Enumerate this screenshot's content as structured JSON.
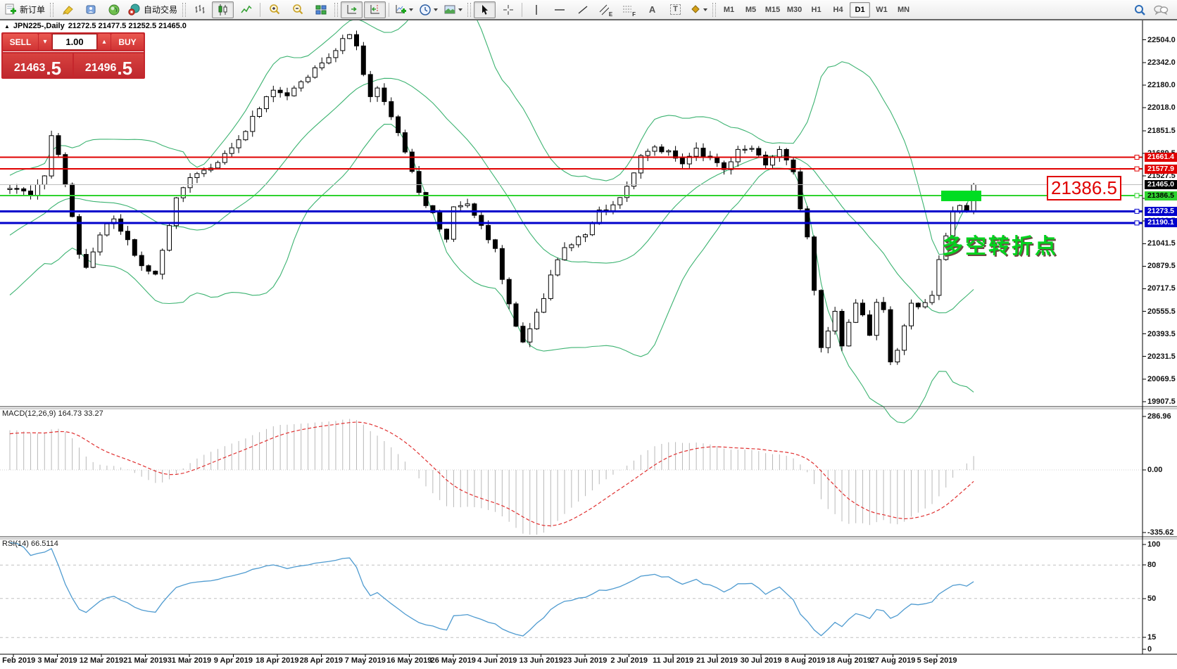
{
  "toolbar": {
    "new_order": "新订单",
    "auto_trading": "自动交易",
    "timeframes": [
      {
        "label": "M1",
        "active": false
      },
      {
        "label": "M5",
        "active": false
      },
      {
        "label": "M15",
        "active": false
      },
      {
        "label": "M30",
        "active": false
      },
      {
        "label": "H1",
        "active": false
      },
      {
        "label": "H4",
        "active": false
      },
      {
        "label": "D1",
        "active": true
      },
      {
        "label": "W1",
        "active": false
      },
      {
        "label": "MN",
        "active": false
      }
    ],
    "tool_glyphs": {
      "text": "A",
      "label": "T",
      "channel": "E",
      "fibo": "F"
    }
  },
  "chart": {
    "collapse_arrow": "▲",
    "symbol_period": "JPN225-,Daily",
    "ohlc_text": "21272.5 21477.5 21252.5 21465.0",
    "trade_panel": {
      "sell_label": "SELL",
      "buy_label": "BUY",
      "volume": "1.00",
      "down_arrow": "▾",
      "up_arrow": "▴",
      "sell_price_main": "21463",
      "sell_price_frac": ".5",
      "buy_price_main": "21496",
      "buy_price_frac": ".5"
    },
    "big_price_label": "21386.5",
    "annotation": "多空转折点",
    "price_tags": [
      {
        "label": "21661.4",
        "line": "#e00000",
        "width": 2,
        "bg": "#e00000",
        "fg": "#ffffff",
        "marker": true
      },
      {
        "label": "21577.9",
        "line": "#e00000",
        "width": 2,
        "bg": "#e00000",
        "fg": "#ffffff",
        "marker": true
      },
      {
        "label": "21465.0",
        "line": "#bcbcbc",
        "width": 1,
        "bg": "#000000",
        "fg": "#ffffff",
        "marker": false
      },
      {
        "label": "21386.5",
        "line": "#2fd32f",
        "width": 2,
        "bg": "#2fd32f",
        "fg": "#000000",
        "marker": true
      },
      {
        "label": "21273.5",
        "line": "#0000cc",
        "width": 3,
        "bg": "#0000cc",
        "fg": "#ffffff",
        "marker": true
      },
      {
        "label": "21190.1",
        "line": "#0000cc",
        "width": 3,
        "bg": "#0000cc",
        "fg": "#ffffff",
        "marker": true
      }
    ],
    "y_axis_labels": [
      "22504.0",
      "22342.0",
      "22180.0",
      "22018.0",
      "21851.5",
      "21689.5",
      "21527.5",
      "21365.5",
      "21203.5",
      "21041.5",
      "20879.5",
      "20717.5",
      "20555.5",
      "20393.5",
      "20231.5",
      "20069.5",
      "19907.5"
    ]
  },
  "macd": {
    "label": "MACD(12,26,9) 164.73 33.27",
    "axis_labels": [
      "286.96",
      "0.00",
      "-335.62"
    ]
  },
  "rsi": {
    "label": "RSI(14) 66.5114",
    "axis_labels": [
      "100",
      "80",
      "50",
      "15",
      "0"
    ]
  },
  "date_axis": [
    "21 Feb 2019",
    "3 Mar 2019",
    "12 Mar 2019",
    "21 Mar 2019",
    "31 Mar 2019",
    "9 Apr 2019",
    "18 Apr 2019",
    "28 Apr 2019",
    "7 May 2019",
    "16 May 2019",
    "26 May 2019",
    "4 Jun 2019",
    "13 Jun 2019",
    "23 Jun 2019",
    "2 Jul 2019",
    "11 Jul 2019",
    "21 Jul 2019",
    "30 Jul 2019",
    "8 Aug 2019",
    "18 Aug 2019",
    "27 Aug 2019",
    "5 Sep 2019"
  ],
  "chart_data": {
    "type": "candlestick",
    "symbol": "JPN225-",
    "period": "Daily",
    "last_ohlc": {
      "open": 21272.5,
      "high": 21477.5,
      "low": 21252.5,
      "close": 21465.0
    },
    "bid": 21463.5,
    "ask": 21496.5,
    "horizontal_levels": {
      "resistance": [
        21661.4,
        21577.9
      ],
      "last_price": 21465.0,
      "pivot": 21386.5,
      "support": [
        21273.5,
        21190.1
      ]
    },
    "y_ticks": [
      22504.0,
      22342.0,
      22180.0,
      22018.0,
      21851.5,
      21689.5,
      21527.5,
      21365.5,
      21203.5,
      21041.5,
      20879.5,
      20717.5,
      20555.5,
      20393.5,
      20231.5,
      20069.5,
      19907.5
    ],
    "x_axis_dates": [
      "21 Feb 2019",
      "3 Mar 2019",
      "12 Mar 2019",
      "21 Mar 2019",
      "31 Mar 2019",
      "9 Apr 2019",
      "18 Apr 2019",
      "28 Apr 2019",
      "7 May 2019",
      "16 May 2019",
      "26 May 2019",
      "4 Jun 2019",
      "13 Jun 2019",
      "23 Jun 2019",
      "2 Jul 2019",
      "11 Jul 2019",
      "21 Jul 2019",
      "30 Jul 2019",
      "8 Aug 2019",
      "18 Aug 2019",
      "27 Aug 2019",
      "5 Sep 2019"
    ],
    "price_path": [
      [
        0,
        21450
      ],
      [
        3,
        21400
      ],
      [
        5,
        21520
      ],
      [
        6,
        21800
      ],
      [
        7,
        21690
      ],
      [
        8,
        21480
      ],
      [
        10,
        20960
      ],
      [
        11,
        20870
      ],
      [
        13,
        21110
      ],
      [
        15,
        21230
      ],
      [
        17,
        21060
      ],
      [
        19,
        20880
      ],
      [
        21,
        20830
      ],
      [
        22,
        20990
      ],
      [
        24,
        21380
      ],
      [
        26,
        21500
      ],
      [
        28,
        21560
      ],
      [
        30,
        21630
      ],
      [
        32,
        21720
      ],
      [
        34,
        21860
      ],
      [
        36,
        22020
      ],
      [
        38,
        22150
      ],
      [
        40,
        22090
      ],
      [
        42,
        22210
      ],
      [
        44,
        22290
      ],
      [
        46,
        22390
      ],
      [
        48,
        22500
      ],
      [
        49,
        22530
      ],
      [
        50,
        22450
      ],
      [
        51,
        22260
      ],
      [
        52,
        22080
      ],
      [
        53,
        22170
      ],
      [
        55,
        21950
      ],
      [
        57,
        21700
      ],
      [
        59,
        21400
      ],
      [
        61,
        21250
      ],
      [
        63,
        21060
      ],
      [
        64,
        21290
      ],
      [
        66,
        21330
      ],
      [
        68,
        21160
      ],
      [
        70,
        21000
      ],
      [
        72,
        20600
      ],
      [
        74,
        20330
      ],
      [
        75,
        20420
      ],
      [
        77,
        20660
      ],
      [
        79,
        20940
      ],
      [
        81,
        21050
      ],
      [
        83,
        21110
      ],
      [
        85,
        21270
      ],
      [
        87,
        21310
      ],
      [
        89,
        21460
      ],
      [
        91,
        21660
      ],
      [
        93,
        21730
      ],
      [
        95,
        21700
      ],
      [
        97,
        21600
      ],
      [
        99,
        21710
      ],
      [
        101,
        21650
      ],
      [
        103,
        21580
      ],
      [
        105,
        21700
      ],
      [
        107,
        21720
      ],
      [
        109,
        21610
      ],
      [
        111,
        21700
      ],
      [
        113,
        21550
      ],
      [
        114,
        21300
      ],
      [
        115,
        21090
      ],
      [
        116,
        20720
      ],
      [
        117,
        20280
      ],
      [
        118,
        20410
      ],
      [
        119,
        20560
      ],
      [
        120,
        20310
      ],
      [
        121,
        20460
      ],
      [
        122,
        20610
      ],
      [
        123,
        20520
      ],
      [
        124,
        20400
      ],
      [
        125,
        20610
      ],
      [
        126,
        20550
      ],
      [
        127,
        20180
      ],
      [
        128,
        20270
      ],
      [
        129,
        20460
      ],
      [
        130,
        20620
      ],
      [
        131,
        20570
      ],
      [
        132,
        20630
      ],
      [
        133,
        20660
      ],
      [
        134,
        20930
      ],
      [
        135,
        21110
      ],
      [
        136,
        21260
      ],
      [
        137,
        21330
      ],
      [
        139,
        21465
      ]
    ],
    "highlight_box": {
      "price": 21386.5,
      "color": "#00dd22"
    },
    "indicators": {
      "bollinger_bands": {
        "period": 20,
        "deviation": 2,
        "color": "#3cb371"
      },
      "macd": {
        "fast": 12,
        "slow": 26,
        "signal": 9,
        "value": 164.73,
        "signal_value": 33.27,
        "axis_max": 286.96,
        "axis_min": -335.62,
        "hist_color": "#b8b8b8",
        "signal_color": "#e03030"
      },
      "rsi": {
        "period": 14,
        "value": 66.5114,
        "levels": [
          80,
          50,
          15
        ],
        "color": "#4f9bd0"
      }
    }
  }
}
